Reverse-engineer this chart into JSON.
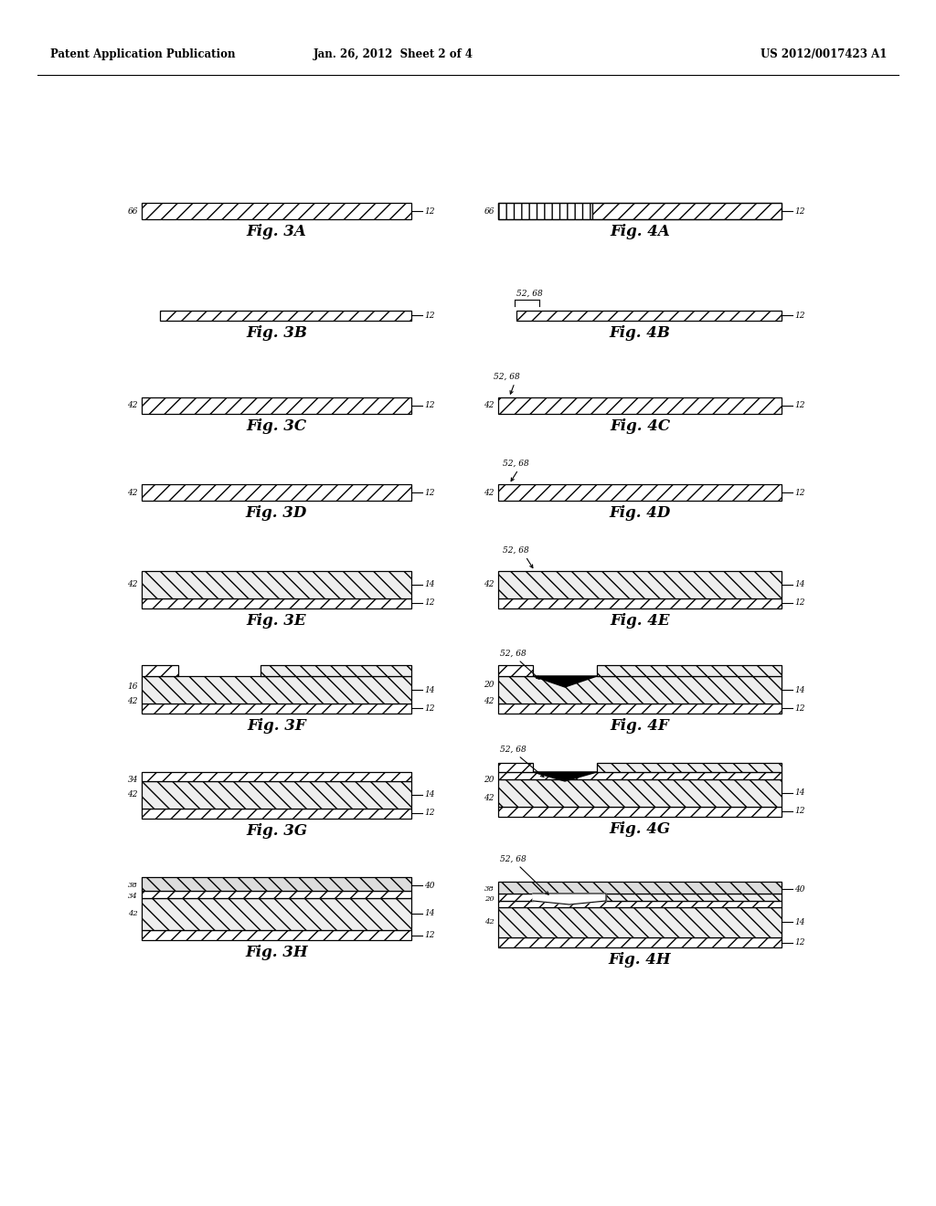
{
  "header_left": "Patent Application Publication",
  "header_mid": "Jan. 26, 2012  Sheet 2 of 4",
  "header_right": "US 2012/0017423 A1",
  "background_color": "#ffffff"
}
